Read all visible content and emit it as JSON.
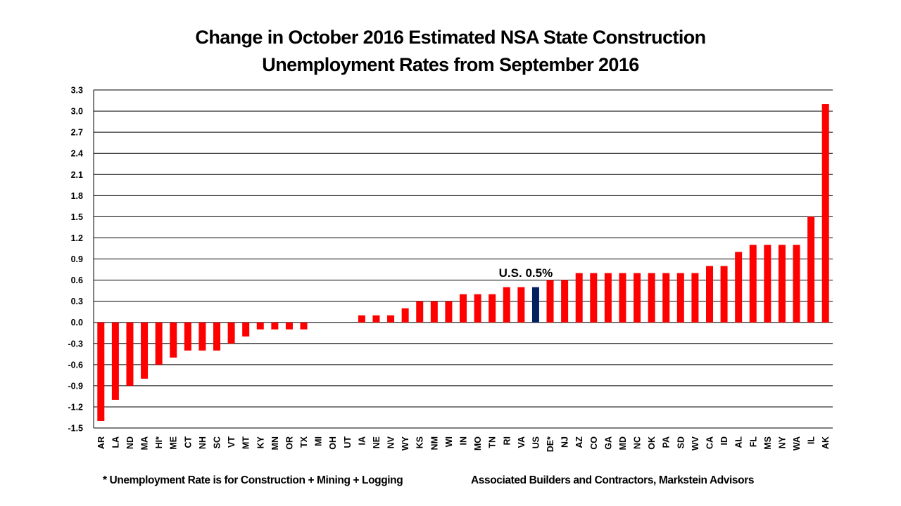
{
  "chart_data": {
    "type": "bar",
    "title": "Change in October 2016 Estimated NSA State Construction Unemployment Rates from September 2016",
    "title_lines": [
      "Change in October 2016 Estimated NSA State Construction",
      "Unemployment Rates from September 2016"
    ],
    "xlabel": "",
    "ylabel": "",
    "ylim": [
      -1.5,
      3.3
    ],
    "yticks": [
      3.3,
      3.0,
      2.7,
      2.4,
      2.1,
      1.8,
      1.5,
      1.2,
      0.9,
      0.6,
      0.3,
      0.0,
      -0.3,
      -0.6,
      -0.9,
      -1.2,
      -1.5
    ],
    "ytick_labels": [
      "3.3",
      "3.0",
      "2.7",
      "2.4",
      "2.1",
      "1.8",
      "1.5",
      "1.2",
      "0.9",
      "0.6",
      "0.3",
      "0.0",
      "-0.3",
      "-0.6",
      "-0.9",
      "-1.2",
      "-1.5"
    ],
    "grid": true,
    "legend": "none",
    "categories": [
      "AR",
      "LA",
      "ND",
      "MA",
      "HI*",
      "ME",
      "CT",
      "NH",
      "SC",
      "VT",
      "MT",
      "KY",
      "MN",
      "OR",
      "TX",
      "MI",
      "OH",
      "UT",
      "IA",
      "NE",
      "NV",
      "WY",
      "KS",
      "NM",
      "WI",
      "IN",
      "MO",
      "TN",
      "RI",
      "VA",
      "US",
      "DE*",
      "NJ",
      "AZ",
      "CO",
      "GA",
      "MD",
      "NC",
      "OK",
      "PA",
      "SD",
      "WV",
      "CA",
      "ID",
      "AL",
      "FL",
      "MS",
      "NY",
      "WA",
      "IL",
      "AK"
    ],
    "values": [
      -1.4,
      -1.1,
      -0.9,
      -0.8,
      -0.6,
      -0.5,
      -0.4,
      -0.4,
      -0.4,
      -0.3,
      -0.2,
      -0.1,
      -0.1,
      -0.1,
      -0.1,
      0.0,
      0.0,
      0.0,
      0.1,
      0.1,
      0.1,
      0.2,
      0.3,
      0.3,
      0.3,
      0.4,
      0.4,
      0.4,
      0.5,
      0.5,
      0.5,
      0.6,
      0.6,
      0.7,
      0.7,
      0.7,
      0.7,
      0.7,
      0.7,
      0.7,
      0.7,
      0.7,
      0.8,
      0.8,
      1.0,
      1.1,
      1.1,
      1.1,
      1.1,
      1.5,
      3.1
    ],
    "highlight_category": "US",
    "colors": {
      "default": "#ff0000",
      "highlight": "#002060"
    },
    "annotations": [
      {
        "text": "U.S. 0.5%",
        "category": "US"
      }
    ]
  },
  "footer": {
    "footnote": "* Unemployment Rate is for Construction + Mining + Logging",
    "source": "Associated Builders and Contractors, Markstein Advisors"
  }
}
